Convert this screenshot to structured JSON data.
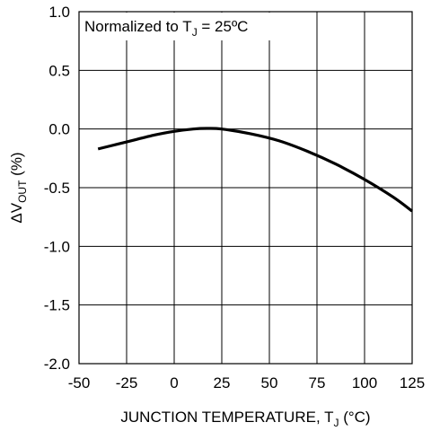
{
  "chart_data": {
    "type": "line",
    "annotation": {
      "prefix": "Normalized to T",
      "subscript": "J",
      "suffix": " = 25ºC"
    },
    "xlabel": {
      "prefix": "JUNCTION TEMPERATURE, T",
      "subscript": "J",
      "suffix": " (°C)"
    },
    "ylabel": {
      "prefix": "ΔV",
      "subscript": "OUT",
      "suffix": " (%)"
    },
    "xlim": [
      -50,
      125
    ],
    "ylim": [
      -2.0,
      1.0
    ],
    "x_ticks": [
      -50,
      -25,
      0,
      25,
      50,
      75,
      100,
      125
    ],
    "x_tick_labels": [
      "-50",
      "-25",
      "0",
      "25",
      "50",
      "75",
      "100",
      "125"
    ],
    "y_ticks": [
      1.0,
      0.5,
      0.0,
      -0.5,
      -1.0,
      -1.5,
      -2.0
    ],
    "y_tick_labels": [
      "1.0",
      "0.5",
      "0.0",
      "-0.5",
      "-1.0",
      "-1.5",
      "-2.0"
    ],
    "grid": true,
    "series": [
      {
        "color": "#000000",
        "x": [
          -40,
          -25,
          -10,
          0,
          10,
          17,
          25,
          40,
          55,
          70,
          85,
          100,
          115,
          125
        ],
        "y": [
          -0.17,
          -0.11,
          -0.05,
          -0.02,
          0.0,
          0.005,
          0.0,
          -0.04,
          -0.1,
          -0.19,
          -0.3,
          -0.43,
          -0.58,
          -0.7
        ]
      }
    ]
  }
}
